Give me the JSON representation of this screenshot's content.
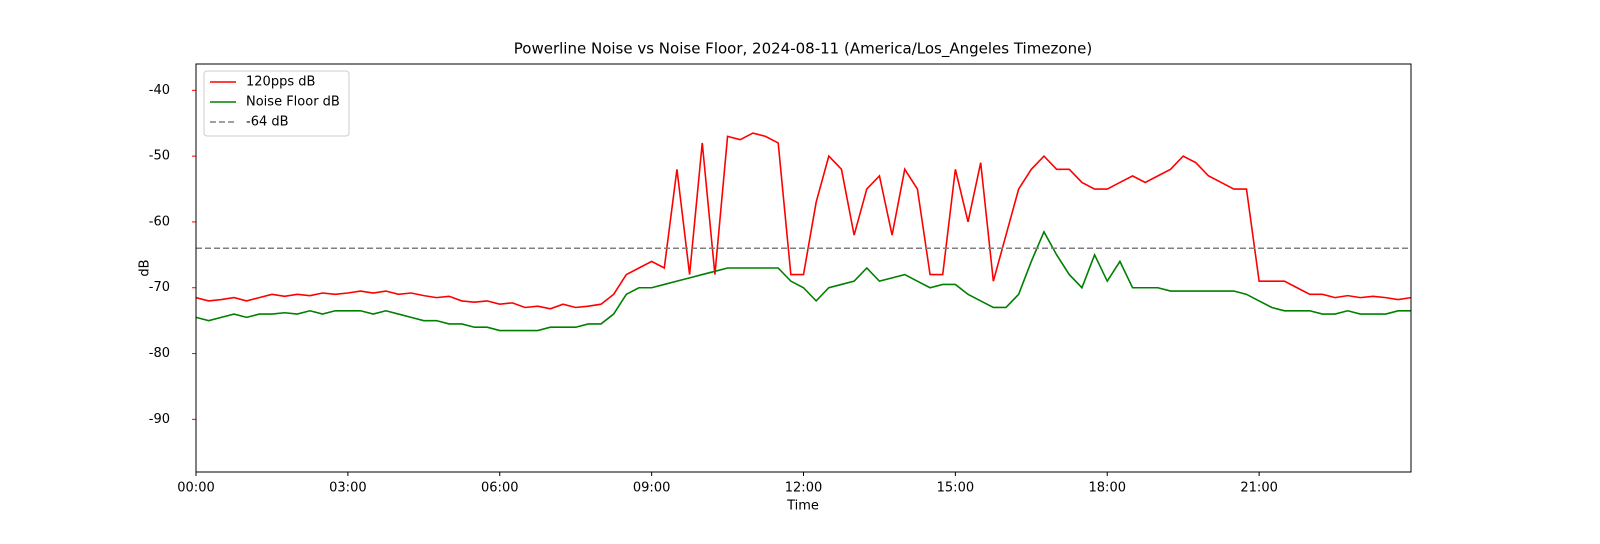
{
  "chart_data": {
    "type": "line",
    "title": "Powerline Noise vs Noise Floor, 2024-08-11 (America/Los_Angeles Timezone)",
    "x_label": "Time",
    "y_label": "dB",
    "y_axis_color": "red",
    "x": [
      0,
      0.25,
      0.5,
      0.75,
      1,
      1.25,
      1.5,
      1.75,
      2,
      2.25,
      2.5,
      2.75,
      3,
      3.25,
      3.5,
      3.75,
      4,
      4.25,
      4.5,
      4.75,
      5,
      5.25,
      5.5,
      5.75,
      6,
      6.25,
      6.5,
      6.75,
      7,
      7.25,
      7.5,
      7.75,
      8,
      8.25,
      8.5,
      8.75,
      9,
      9.25,
      9.5,
      9.75,
      10,
      10.25,
      10.5,
      10.75,
      11,
      11.25,
      11.5,
      11.75,
      12,
      12.25,
      12.5,
      12.75,
      13,
      13.25,
      13.5,
      13.75,
      14,
      14.25,
      14.5,
      14.75,
      15,
      15.25,
      15.5,
      15.75,
      16,
      16.25,
      16.5,
      16.75,
      17,
      17.25,
      17.5,
      17.75,
      18,
      18.25,
      18.5,
      18.75,
      19,
      19.25,
      19.5,
      19.75,
      20,
      20.25,
      20.5,
      20.75,
      21,
      21.25,
      21.5,
      21.75,
      22,
      22.25,
      22.5,
      22.75,
      23,
      23.25,
      23.5,
      23.75,
      24
    ],
    "series": [
      {
        "name": "120pps dB",
        "color": "red",
        "values": [
          -71.5,
          -72,
          -71.8,
          -71.5,
          -72,
          -71.5,
          -71,
          -71.3,
          -71,
          -71.2,
          -70.8,
          -71,
          -70.8,
          -70.5,
          -70.8,
          -70.5,
          -71,
          -70.8,
          -71.2,
          -71.5,
          -71.3,
          -72,
          -72.2,
          -72,
          -72.5,
          -72.3,
          -73,
          -72.8,
          -73.2,
          -72.5,
          -73,
          -72.8,
          -72.5,
          -71,
          -68,
          -67,
          -66,
          -67,
          -52,
          -68,
          -48,
          -68,
          -47,
          -47.5,
          -46.5,
          -47,
          -48,
          -68,
          -68,
          -57,
          -50,
          -52,
          -62,
          -55,
          -53,
          -62,
          -52,
          -55,
          -68,
          -68,
          -52,
          -60,
          -51,
          -69,
          -62,
          -55,
          -52,
          -50,
          -52,
          -52,
          -54,
          -55,
          -55,
          -54,
          -53,
          -54,
          -53,
          -52,
          -50,
          -51,
          -53,
          -54,
          -55,
          -55,
          -69,
          -69,
          -69,
          -70,
          -71,
          -71,
          -71.5,
          -71.2,
          -71.5,
          -71.3,
          -71.5,
          -71.8,
          -71.5
        ]
      },
      {
        "name": "Noise Floor dB",
        "color": "green",
        "values": [
          -74.5,
          -75,
          -74.5,
          -74,
          -74.5,
          -74,
          -74,
          -73.8,
          -74,
          -73.5,
          -74,
          -73.5,
          -73.5,
          -73.5,
          -74,
          -73.5,
          -74,
          -74.5,
          -75,
          -75,
          -75.5,
          -75.5,
          -76,
          -76,
          -76.5,
          -76.5,
          -76.5,
          -76.5,
          -76,
          -76,
          -76,
          -75.5,
          -75.5,
          -74,
          -71,
          -70,
          -70,
          -69.5,
          -69,
          -68.5,
          -68,
          -67.5,
          -67,
          -67,
          -67,
          -67,
          -67,
          -69,
          -70,
          -72,
          -70,
          -69.5,
          -69,
          -67,
          -69,
          -68.5,
          -68,
          -69,
          -70,
          -69.5,
          -69.5,
          -71,
          -72,
          -73,
          -73,
          -71,
          -66,
          -61.5,
          -65,
          -68,
          -70,
          -65,
          -69,
          -66,
          -70,
          -70,
          -70,
          -70.5,
          -70.5,
          -70.5,
          -70.5,
          -70.5,
          -70.5,
          -71,
          -72,
          -73,
          -73.5,
          -73.5,
          -73.5,
          -74,
          -74,
          -73.5,
          -74,
          -74,
          -74,
          -73.5,
          -73.5
        ]
      }
    ],
    "reference_line": {
      "name": "-64 dB",
      "value": -64,
      "color": "gray",
      "style": "dashed"
    },
    "xlim": [
      0,
      24
    ],
    "xticks": [
      {
        "value": 0,
        "label": "00:00"
      },
      {
        "value": 3,
        "label": "03:00"
      },
      {
        "value": 6,
        "label": "06:00"
      },
      {
        "value": 9,
        "label": "09:00"
      },
      {
        "value": 12,
        "label": "12:00"
      },
      {
        "value": 15,
        "label": "15:00"
      },
      {
        "value": 18,
        "label": "18:00"
      },
      {
        "value": 21,
        "label": "21:00"
      }
    ],
    "ylim": [
      -98,
      -36
    ],
    "yticks": [
      -90,
      -80,
      -70,
      -60,
      -50,
      -40
    ],
    "legend": "upper left",
    "grid": false
  }
}
